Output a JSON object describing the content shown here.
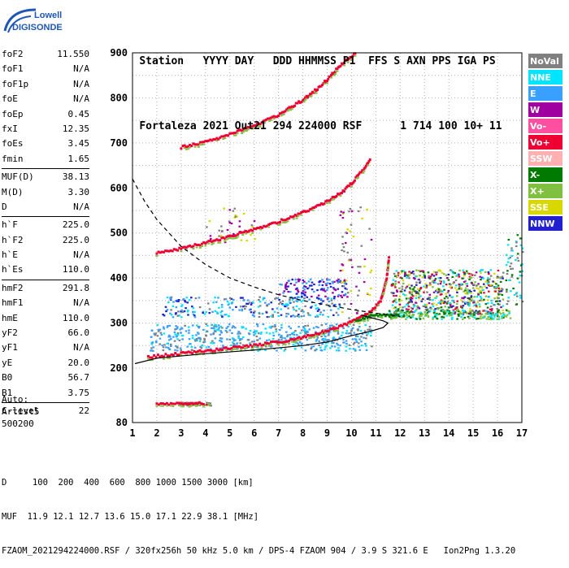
{
  "logo": {
    "line1": "Lowell",
    "line2": "DIGISONDE",
    "accent": "#1f57b4"
  },
  "header": {
    "labels": [
      "Station",
      "YYYY DAY",
      "DDD HHMMSS P1",
      "FFS S AXN PPS IGA PS"
    ],
    "values": [
      "Fortaleza",
      "2021 Out21",
      "294 224000 RSF",
      "1 714 100 10+ 11"
    ]
  },
  "params": [
    [
      {
        "name": "foF2",
        "value": "11.550"
      },
      {
        "name": "foF1",
        "value": "N/A"
      },
      {
        "name": "foF1p",
        "value": "N/A"
      },
      {
        "name": "foE",
        "value": "N/A"
      },
      {
        "name": "foEp",
        "value": "0.45"
      },
      {
        "name": "fxI",
        "value": "12.35"
      },
      {
        "name": "foEs",
        "value": "3.45"
      },
      {
        "name": "fmin",
        "value": "1.65"
      }
    ],
    [
      {
        "name": "MUF(D)",
        "value": "38.13"
      },
      {
        "name": "M(D)",
        "value": "3.30"
      },
      {
        "name": "D",
        "value": "N/A"
      }
    ],
    [
      {
        "name": "h`F",
        "value": "225.0"
      },
      {
        "name": "h`F2",
        "value": "225.0"
      },
      {
        "name": "h`E",
        "value": "N/A"
      },
      {
        "name": "h`Es",
        "value": "110.0"
      }
    ],
    [
      {
        "name": "hmF2",
        "value": "291.8"
      },
      {
        "name": "hmF1",
        "value": "N/A"
      },
      {
        "name": "hmE",
        "value": "110.0"
      },
      {
        "name": "yF2",
        "value": "66.0"
      },
      {
        "name": "yF1",
        "value": "N/A"
      },
      {
        "name": "yE",
        "value": "20.0"
      },
      {
        "name": "B0",
        "value": "56.7"
      },
      {
        "name": "B1",
        "value": "3.75"
      }
    ],
    [
      {
        "name": "C-level",
        "value": "22"
      }
    ]
  ],
  "auto": {
    "line1": "Auto:",
    "line2": "Artist5",
    "line3": "500200"
  },
  "legend": [
    {
      "label": "NoVal",
      "color": "#808080"
    },
    {
      "label": "NNE",
      "color": "#00e5ff"
    },
    {
      "label": "E",
      "color": "#3aa0ff"
    },
    {
      "label": "W",
      "color": "#a000a0"
    },
    {
      "label": "Vo-",
      "color": "#ff4fa0"
    },
    {
      "label": "Vo+",
      "color": "#ee0033"
    },
    {
      "label": "SSW",
      "color": "#ffb0b0"
    },
    {
      "label": "X-",
      "color": "#007a00"
    },
    {
      "label": "X+",
      "color": "#80c040"
    },
    {
      "label": "SSE",
      "color": "#d8d800"
    },
    {
      "label": "NNW",
      "color": "#2020d0"
    }
  ],
  "footer": {
    "line1": "D     100  200  400  600  800 1000 1500 3000 [km]",
    "line2": "MUF  11.9 12.1 12.7 13.6 15.0 17.1 22.9 38.1 [MHz]",
    "line3": "FZAOM_2021294224000.RSF / 320fx256h 50 kHz 5.0 km / DPS-4 FZAOM 904 / 3.9 S 321.6 E   Ion2Png 1.3.20"
  },
  "chart_data": {
    "type": "scatter",
    "xlim": [
      1,
      17
    ],
    "ylim": [
      80,
      900
    ],
    "x_ticks": [
      1,
      2,
      3,
      4,
      5,
      6,
      7,
      8,
      9,
      10,
      11,
      12,
      13,
      14,
      15,
      16,
      17
    ],
    "y_ticks": [
      80,
      200,
      300,
      400,
      500,
      600,
      700,
      800,
      900
    ],
    "grid": true,
    "traces": [
      {
        "name": "o-trace-F",
        "color": "#ee0033",
        "points": [
          [
            1.65,
            225
          ],
          [
            3,
            232
          ],
          [
            4,
            238
          ],
          [
            5,
            244
          ],
          [
            6,
            250
          ],
          [
            7,
            258
          ],
          [
            8,
            268
          ],
          [
            9,
            282
          ],
          [
            10,
            302
          ],
          [
            10.8,
            325
          ],
          [
            11.2,
            350
          ],
          [
            11.45,
            400
          ],
          [
            11.55,
            450
          ]
        ]
      },
      {
        "name": "o-trace-2F",
        "color": "#ee0033",
        "points": [
          [
            2,
            455
          ],
          [
            3,
            465
          ],
          [
            4,
            478
          ],
          [
            5,
            492
          ],
          [
            6,
            508
          ],
          [
            7,
            525
          ],
          [
            8,
            545
          ],
          [
            9,
            570
          ],
          [
            9.6,
            590
          ],
          [
            10,
            610
          ],
          [
            10.4,
            635
          ],
          [
            10.8,
            665
          ]
        ]
      },
      {
        "name": "o-trace-3F",
        "color": "#ee0033",
        "points": [
          [
            3,
            690
          ],
          [
            4,
            702
          ],
          [
            5,
            718
          ],
          [
            6,
            738
          ],
          [
            7,
            762
          ],
          [
            8,
            795
          ],
          [
            8.6,
            820
          ],
          [
            9,
            840
          ],
          [
            9.5,
            870
          ],
          [
            10.2,
            900
          ]
        ]
      },
      {
        "name": "x-trace-F",
        "color": "#007a00",
        "points": [
          [
            10.2,
            305
          ],
          [
            10.8,
            315
          ],
          [
            11.4,
            318
          ],
          [
            12,
            320
          ]
        ]
      },
      {
        "name": "Es-trace",
        "color": "#ee0033",
        "points": [
          [
            2,
            120
          ],
          [
            3,
            121
          ],
          [
            4,
            122
          ]
        ]
      }
    ],
    "profile_curve": [
      [
        1.1,
        210
      ],
      [
        2,
        222
      ],
      [
        4,
        232
      ],
      [
        6,
        240
      ],
      [
        8,
        250
      ],
      [
        9,
        258
      ],
      [
        10,
        272
      ],
      [
        10.8,
        282
      ],
      [
        11.3,
        290
      ],
      [
        11.5,
        300
      ],
      [
        11.3,
        305
      ],
      [
        10.8,
        312
      ],
      [
        10.4,
        318
      ]
    ],
    "muf_curve": [
      [
        1,
        620
      ],
      [
        1.5,
        570
      ],
      [
        2,
        530
      ],
      [
        3,
        470
      ],
      [
        4,
        430
      ],
      [
        5,
        400
      ],
      [
        6,
        380
      ],
      [
        7,
        363
      ],
      [
        8,
        350
      ],
      [
        9,
        340
      ],
      [
        10,
        330
      ],
      [
        11,
        322
      ],
      [
        12,
        315
      ]
    ]
  }
}
